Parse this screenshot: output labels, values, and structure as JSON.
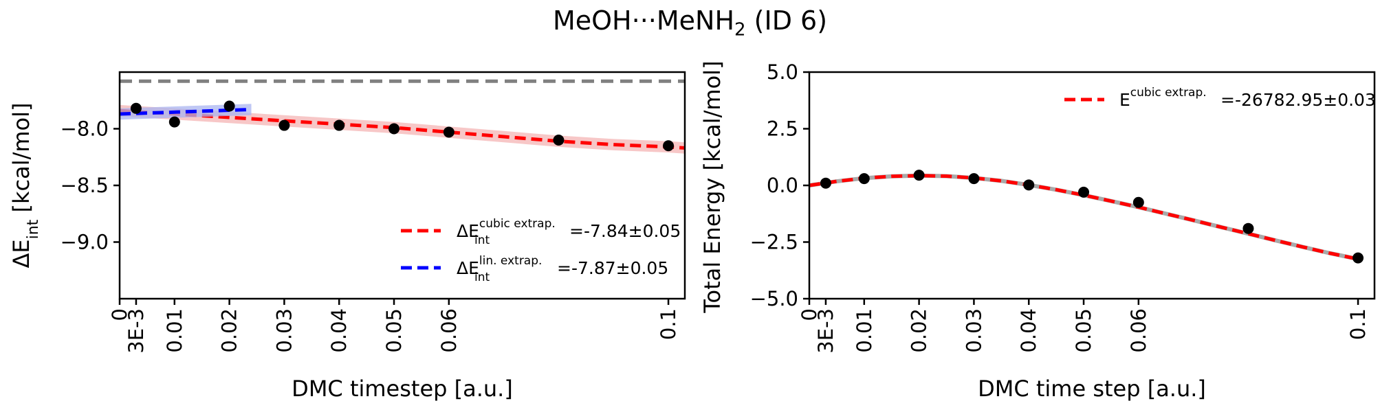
{
  "figure": {
    "title_prefix": "MeOH···MeNH",
    "title_sub": "2",
    "title_suffix": " (ID 6)"
  },
  "colors": {
    "cubic": "#ff0000",
    "cubic_band": "#f4b4b4",
    "linear": "#0000ff",
    "linear_band": "#a9b4f0",
    "reference": "#808080",
    "points": "#000000"
  },
  "chart_data": [
    {
      "type": "scatter",
      "xlabel": "DMC timestep [a.u.]",
      "ylabel_delta": "ΔE",
      "ylabel_sub": "int",
      "ylabel_unit": " [kcal/mol]",
      "xlim": [
        0,
        0.103
      ],
      "ylim": [
        -9.5,
        -7.5
      ],
      "x_ticks": [
        {
          "value": 0,
          "label": "0"
        },
        {
          "value": 0.003,
          "label": "3E-3"
        },
        {
          "value": 0.01,
          "label": "0.01"
        },
        {
          "value": 0.02,
          "label": "0.02"
        },
        {
          "value": 0.03,
          "label": "0.03"
        },
        {
          "value": 0.04,
          "label": "0.04"
        },
        {
          "value": 0.05,
          "label": "0.05"
        },
        {
          "value": 0.06,
          "label": "0.06"
        },
        {
          "value": 0.1,
          "label": "0.1"
        }
      ],
      "y_ticks": [
        {
          "value": -8.0,
          "label": "−8.0"
        },
        {
          "value": -8.5,
          "label": "−8.5"
        },
        {
          "value": -9.0,
          "label": "−9.0"
        }
      ],
      "reference_line": -7.58,
      "points": [
        {
          "x": 0.003,
          "y": -7.82
        },
        {
          "x": 0.01,
          "y": -7.94
        },
        {
          "x": 0.02,
          "y": -7.8
        },
        {
          "x": 0.03,
          "y": -7.97
        },
        {
          "x": 0.04,
          "y": -7.97
        },
        {
          "x": 0.05,
          "y": -8.0
        },
        {
          "x": 0.06,
          "y": -8.03
        },
        {
          "x": 0.08,
          "y": -8.1
        },
        {
          "x": 0.1,
          "y": -8.15
        }
      ],
      "cubic_fit": {
        "x": [
          0,
          0.01,
          0.02,
          0.03,
          0.04,
          0.05,
          0.06,
          0.07,
          0.08,
          0.09,
          0.1,
          0.103
        ],
        "y": [
          -7.84,
          -7.87,
          -7.9,
          -7.93,
          -7.96,
          -7.99,
          -8.03,
          -8.07,
          -8.11,
          -8.14,
          -8.16,
          -8.17
        ],
        "band": 0.05
      },
      "linear_fit": {
        "x": [
          0,
          0.024
        ],
        "y": [
          -7.87,
          -7.83
        ],
        "band": 0.05
      },
      "legend_position": "lower-right",
      "legend": [
        {
          "series": "cubic",
          "base": "ΔE",
          "sup": "cubic extrap.",
          "sub": "int",
          "value": "=-7.84±0.05"
        },
        {
          "series": "linear",
          "base": "ΔE",
          "sup": "lin. extrap.",
          "sub": "int",
          "value": "=-7.87±0.05"
        }
      ]
    },
    {
      "type": "scatter",
      "xlabel": "DMC time step [a.u.]",
      "ylabel": "Total Energy [kcal/mol]",
      "xlim": [
        0,
        0.103
      ],
      "ylim": [
        -5.0,
        5.0
      ],
      "x_ticks": [
        {
          "value": 0,
          "label": "0"
        },
        {
          "value": 0.003,
          "label": "3E-3"
        },
        {
          "value": 0.01,
          "label": "0.01"
        },
        {
          "value": 0.02,
          "label": "0.02"
        },
        {
          "value": 0.03,
          "label": "0.03"
        },
        {
          "value": 0.04,
          "label": "0.04"
        },
        {
          "value": 0.05,
          "label": "0.05"
        },
        {
          "value": 0.06,
          "label": "0.06"
        },
        {
          "value": 0.1,
          "label": "0.1"
        }
      ],
      "y_ticks": [
        {
          "value": 5.0,
          "label": "5.0"
        },
        {
          "value": 2.5,
          "label": "2.5"
        },
        {
          "value": 0.0,
          "label": "0.0"
        },
        {
          "value": -2.5,
          "label": "−2.5"
        },
        {
          "value": -5.0,
          "label": "−5.0"
        }
      ],
      "points": [
        {
          "x": 0.003,
          "y": 0.1
        },
        {
          "x": 0.01,
          "y": 0.3
        },
        {
          "x": 0.02,
          "y": 0.45
        },
        {
          "x": 0.03,
          "y": 0.3
        },
        {
          "x": 0.04,
          "y": 0.02
        },
        {
          "x": 0.05,
          "y": -0.3
        },
        {
          "x": 0.06,
          "y": -0.75
        },
        {
          "x": 0.08,
          "y": -1.9
        },
        {
          "x": 0.1,
          "y": -3.2
        }
      ],
      "cubic_fit": {
        "x": [
          0,
          0.005,
          0.01,
          0.015,
          0.02,
          0.025,
          0.03,
          0.035,
          0.04,
          0.045,
          0.05,
          0.055,
          0.06,
          0.065,
          0.07,
          0.075,
          0.08,
          0.085,
          0.09,
          0.095,
          0.1
        ],
        "y": [
          0.0,
          0.18,
          0.32,
          0.4,
          0.43,
          0.41,
          0.33,
          0.2,
          0.02,
          -0.19,
          -0.43,
          -0.69,
          -0.96,
          -1.25,
          -1.54,
          -1.84,
          -2.13,
          -2.43,
          -2.72,
          -3.0,
          -3.25
        ]
      },
      "legend_position": "upper-right",
      "legend": [
        {
          "series": "cubic",
          "base": "E",
          "sup": "cubic extrap.",
          "value": "=-26782.95±0.03"
        }
      ]
    }
  ]
}
